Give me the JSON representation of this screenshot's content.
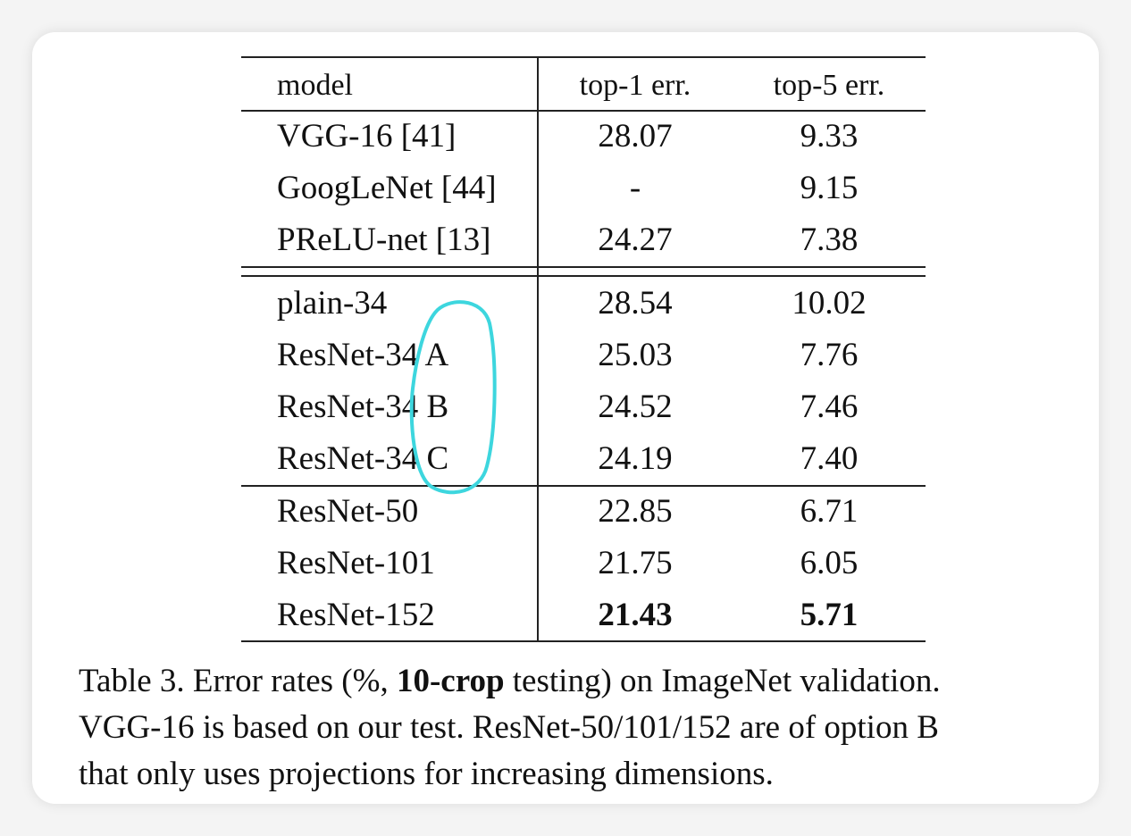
{
  "table": {
    "headers": [
      "model",
      "top-1 err.",
      "top-5 err."
    ],
    "rows": [
      {
        "model": "VGG-16 [41]",
        "top1": "28.07",
        "top5": "9.33"
      },
      {
        "model": "GoogLeNet [44]",
        "top1": "-",
        "top5": "9.15"
      },
      {
        "model": "PReLU-net [13]",
        "top1": "24.27",
        "top5": "7.38"
      },
      {
        "model": "plain-34",
        "top1": "28.54",
        "top5": "10.02"
      },
      {
        "model": "ResNet-34 A",
        "top1": "25.03",
        "top5": "7.76"
      },
      {
        "model": "ResNet-34 B",
        "top1": "24.52",
        "top5": "7.46"
      },
      {
        "model": "ResNet-34 C",
        "top1": "24.19",
        "top5": "7.40"
      },
      {
        "model": "ResNet-50",
        "top1": "22.85",
        "top5": "6.71"
      },
      {
        "model": "ResNet-101",
        "top1": "21.75",
        "top5": "6.05"
      },
      {
        "model": "ResNet-152",
        "top1": "21.43",
        "top5": "5.71"
      }
    ]
  },
  "caption": {
    "line1_pre": "Table 3. Error rates (%, ",
    "line1_bold": "10-crop",
    "line1_post": " testing) on ImageNet validation.",
    "line2": "VGG-16 is based on our test. ResNet-50/101/152 are of option B",
    "line3": "that only uses projections for increasing dimensions."
  },
  "annotation_color": "#3dd6de"
}
